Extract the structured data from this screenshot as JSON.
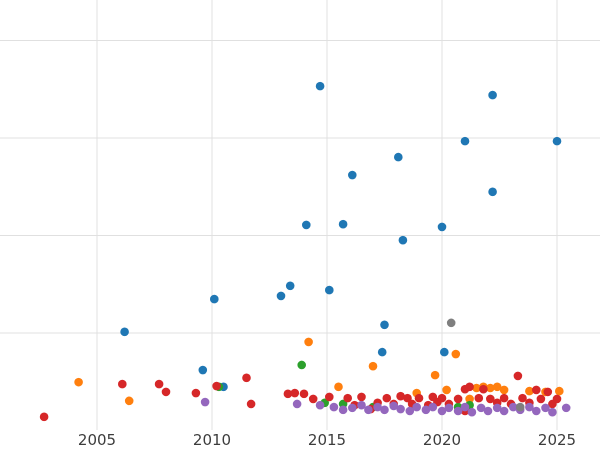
{
  "chart_data": {
    "type": "scatter",
    "title": "",
    "xlabel": "",
    "ylabel": "",
    "grid": true,
    "legend": "none",
    "background": "#ffffff",
    "gridline_color": "#e0e0e0",
    "tick_label_color": "#3c3c3c",
    "marker_radius": 4.3,
    "x_ticks": [
      2005,
      2010,
      2015,
      2020,
      2025
    ],
    "x_tick_labels": [
      "2005",
      "2010",
      "2015",
      "2020",
      "2025"
    ],
    "xlim": [
      2000.8,
      2026.9
    ],
    "ylim": [
      0,
      110
    ],
    "y_axis_labeled": false,
    "y_gridline_values": [
      25,
      50,
      75,
      100
    ],
    "series": [
      {
        "name": "blue",
        "color": "#1f77b4",
        "points": [
          [
            2014.7,
            88.3
          ],
          [
            2022.2,
            86.0
          ],
          [
            2021.0,
            74.2
          ],
          [
            2025.0,
            74.2
          ],
          [
            2018.1,
            70.1
          ],
          [
            2016.1,
            65.5
          ],
          [
            2022.2,
            61.2
          ],
          [
            2014.1,
            52.7
          ],
          [
            2015.7,
            52.9
          ],
          [
            2020.0,
            52.2
          ],
          [
            2018.3,
            48.8
          ],
          [
            2013.4,
            37.1
          ],
          [
            2013.0,
            34.5
          ],
          [
            2015.1,
            36.0
          ],
          [
            2010.1,
            33.7
          ],
          [
            2006.2,
            25.3
          ],
          [
            2017.5,
            27.1
          ],
          [
            2017.4,
            20.1
          ],
          [
            2020.1,
            20.1
          ],
          [
            2009.6,
            15.5
          ],
          [
            2010.5,
            11.2
          ]
        ]
      },
      {
        "name": "orange",
        "color": "#ff7f0e",
        "points": [
          [
            2004.2,
            12.4
          ],
          [
            2006.4,
            7.6
          ],
          [
            2014.2,
            22.7
          ],
          [
            2015.5,
            11.2
          ],
          [
            2017.0,
            16.5
          ],
          [
            2018.9,
            9.6
          ],
          [
            2019.7,
            14.2
          ],
          [
            2020.2,
            10.4
          ],
          [
            2020.6,
            19.6
          ],
          [
            2021.2,
            8.1
          ],
          [
            2021.5,
            10.9
          ],
          [
            2021.8,
            11.2
          ],
          [
            2022.1,
            10.9
          ],
          [
            2022.4,
            11.2
          ],
          [
            2022.7,
            10.4
          ],
          [
            2023.8,
            10.1
          ],
          [
            2024.5,
            9.9
          ],
          [
            2025.1,
            10.1
          ]
        ]
      },
      {
        "name": "green",
        "color": "#2ca02c",
        "points": [
          [
            2013.9,
            16.8
          ],
          [
            2010.3,
            11.2
          ],
          [
            2014.9,
            7.1
          ],
          [
            2015.7,
            6.8
          ],
          [
            2017.0,
            6.0
          ],
          [
            2020.7,
            6.0
          ],
          [
            2021.2,
            6.5
          ]
        ]
      },
      {
        "name": "red",
        "color": "#d62728",
        "points": [
          [
            2002.7,
            3.5
          ],
          [
            2006.1,
            11.9
          ],
          [
            2007.7,
            11.9
          ],
          [
            2008.0,
            9.9
          ],
          [
            2009.3,
            9.6
          ],
          [
            2010.2,
            11.4
          ],
          [
            2011.5,
            13.5
          ],
          [
            2011.7,
            6.8
          ],
          [
            2013.3,
            9.4
          ],
          [
            2013.6,
            9.6
          ],
          [
            2014.0,
            9.4
          ],
          [
            2014.4,
            8.1
          ],
          [
            2015.1,
            8.6
          ],
          [
            2015.9,
            8.3
          ],
          [
            2016.2,
            6.5
          ],
          [
            2016.5,
            8.6
          ],
          [
            2016.9,
            5.5
          ],
          [
            2017.2,
            7.1
          ],
          [
            2017.6,
            8.3
          ],
          [
            2017.9,
            6.8
          ],
          [
            2018.2,
            8.8
          ],
          [
            2018.5,
            8.3
          ],
          [
            2018.7,
            6.8
          ],
          [
            2019.0,
            8.3
          ],
          [
            2019.4,
            6.5
          ],
          [
            2019.6,
            8.6
          ],
          [
            2019.8,
            7.3
          ],
          [
            2020.0,
            8.3
          ],
          [
            2020.3,
            6.8
          ],
          [
            2020.7,
            8.1
          ],
          [
            2021.0,
            10.6
          ],
          [
            2021.0,
            5.0
          ],
          [
            2021.2,
            11.2
          ],
          [
            2021.6,
            8.3
          ],
          [
            2021.8,
            10.6
          ],
          [
            2022.1,
            8.1
          ],
          [
            2022.4,
            7.1
          ],
          [
            2022.7,
            8.3
          ],
          [
            2023.0,
            6.8
          ],
          [
            2023.3,
            14.0
          ],
          [
            2023.5,
            8.3
          ],
          [
            2023.8,
            7.1
          ],
          [
            2024.1,
            10.4
          ],
          [
            2024.3,
            8.1
          ],
          [
            2024.6,
            9.9
          ],
          [
            2024.8,
            6.8
          ],
          [
            2025.0,
            8.1
          ]
        ]
      },
      {
        "name": "purple",
        "color": "#9467bd",
        "points": [
          [
            2009.7,
            7.3
          ],
          [
            2013.7,
            6.8
          ],
          [
            2014.7,
            6.5
          ],
          [
            2015.3,
            6.0
          ],
          [
            2015.7,
            5.3
          ],
          [
            2016.1,
            5.8
          ],
          [
            2016.5,
            6.5
          ],
          [
            2016.8,
            5.3
          ],
          [
            2017.2,
            6.0
          ],
          [
            2017.5,
            5.3
          ],
          [
            2017.9,
            6.3
          ],
          [
            2018.2,
            5.5
          ],
          [
            2018.6,
            5.0
          ],
          [
            2018.9,
            6.0
          ],
          [
            2019.3,
            5.3
          ],
          [
            2019.6,
            6.0
          ],
          [
            2020.0,
            5.0
          ],
          [
            2020.3,
            5.8
          ],
          [
            2020.7,
            5.0
          ],
          [
            2021.0,
            6.0
          ],
          [
            2021.3,
            4.7
          ],
          [
            2021.7,
            5.8
          ],
          [
            2022.0,
            5.0
          ],
          [
            2022.4,
            5.8
          ],
          [
            2022.7,
            5.0
          ],
          [
            2023.1,
            6.0
          ],
          [
            2023.4,
            5.3
          ],
          [
            2023.8,
            6.0
          ],
          [
            2024.1,
            5.0
          ],
          [
            2024.5,
            5.8
          ],
          [
            2024.8,
            4.7
          ],
          [
            2025.4,
            5.8
          ]
        ]
      },
      {
        "name": "gray",
        "color": "#7f7f7f",
        "points": [
          [
            2020.4,
            27.6
          ],
          [
            2023.4,
            6.0
          ]
        ]
      }
    ]
  }
}
